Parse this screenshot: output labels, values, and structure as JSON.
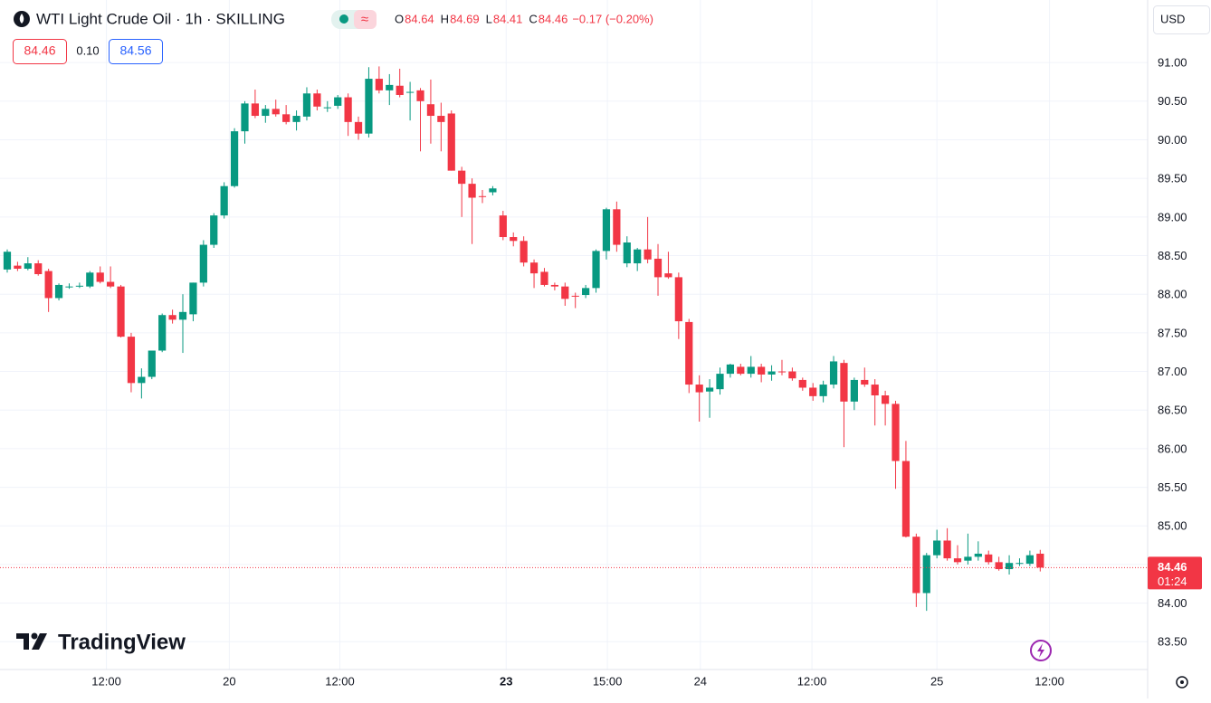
{
  "chart_data": {
    "type": "candlestick",
    "title": "WTI Light Crude Oil · 1h · SKILLING",
    "header_ohlc": [
      {
        "label": "O",
        "value": 84.64
      },
      {
        "label": "H",
        "value": 84.69
      },
      {
        "label": "L",
        "value": 84.41
      },
      {
        "label": "C",
        "value": 84.46
      }
    ],
    "change": "−0.17 (−0.20%)",
    "sell_price": "84.46",
    "spread": "0.10",
    "buy_price": "84.56",
    "currency": "USD",
    "brand": "TradingView",
    "last_price": 84.46,
    "countdown": "01:24",
    "up_color": "#089981",
    "down_color": "#f23645",
    "grid": true,
    "candles": [
      [
        88.32,
        88.58,
        88.28,
        88.55
      ],
      [
        88.37,
        88.42,
        88.3,
        88.33
      ],
      [
        88.33,
        88.48,
        88.31,
        88.4
      ],
      [
        88.4,
        88.44,
        88.24,
        88.26
      ],
      [
        88.3,
        88.33,
        87.77,
        87.95
      ],
      [
        87.95,
        88.14,
        87.92,
        88.12
      ],
      [
        88.1,
        88.14,
        88.07,
        88.1
      ],
      [
        88.1,
        88.15,
        88.08,
        88.11
      ],
      [
        88.1,
        88.3,
        88.08,
        88.28
      ],
      [
        88.28,
        88.36,
        88.14,
        88.16
      ],
      [
        88.16,
        88.36,
        88.08,
        88.1
      ],
      [
        88.1,
        88.12,
        87.44,
        87.45
      ],
      [
        87.45,
        87.5,
        86.73,
        86.85
      ],
      [
        86.85,
        87.04,
        86.65,
        86.93
      ],
      [
        86.93,
        87.27,
        86.9,
        87.27
      ],
      [
        87.27,
        87.75,
        87.25,
        87.73
      ],
      [
        87.73,
        87.8,
        87.62,
        87.67
      ],
      [
        87.67,
        88.0,
        87.24,
        87.77
      ],
      [
        87.74,
        88.15,
        87.65,
        88.15
      ],
      [
        88.15,
        88.7,
        88.1,
        88.64
      ],
      [
        88.64,
        89.05,
        88.6,
        89.02
      ],
      [
        89.02,
        89.45,
        88.98,
        89.4
      ],
      [
        89.4,
        90.15,
        89.38,
        90.11
      ],
      [
        90.11,
        90.5,
        89.95,
        90.47
      ],
      [
        90.47,
        90.65,
        90.28,
        90.31
      ],
      [
        90.31,
        90.45,
        90.22,
        90.4
      ],
      [
        90.4,
        90.52,
        90.3,
        90.33
      ],
      [
        90.33,
        90.45,
        90.2,
        90.23
      ],
      [
        90.23,
        90.38,
        90.12,
        90.31
      ],
      [
        90.3,
        90.68,
        90.25,
        90.6
      ],
      [
        90.6,
        90.65,
        90.38,
        90.43
      ],
      [
        90.42,
        90.5,
        90.36,
        90.42
      ],
      [
        90.44,
        90.58,
        90.4,
        90.55
      ],
      [
        90.55,
        90.6,
        90.05,
        90.23
      ],
      [
        90.23,
        90.3,
        90.0,
        90.08
      ],
      [
        90.08,
        90.94,
        90.03,
        90.79
      ],
      [
        90.79,
        90.95,
        90.6,
        90.64
      ],
      [
        90.64,
        90.85,
        90.45,
        90.71
      ],
      [
        90.7,
        90.92,
        90.55,
        90.58
      ],
      [
        90.62,
        90.75,
        90.25,
        90.62
      ],
      [
        90.64,
        90.67,
        89.85,
        90.5
      ],
      [
        90.46,
        90.78,
        89.95,
        90.31
      ],
      [
        90.31,
        90.48,
        89.85,
        90.23
      ],
      [
        90.34,
        90.38,
        89.6,
        89.6
      ],
      [
        89.6,
        89.65,
        89.0,
        89.43
      ],
      [
        89.43,
        89.5,
        88.65,
        89.25
      ],
      [
        89.27,
        89.35,
        89.18,
        89.26
      ],
      [
        89.32,
        89.4,
        89.28,
        89.37
      ],
      [
        89.02,
        89.08,
        88.7,
        88.74
      ],
      [
        88.74,
        88.8,
        88.62,
        88.69
      ],
      [
        88.69,
        88.75,
        88.36,
        88.41
      ],
      [
        88.41,
        88.45,
        88.08,
        88.27
      ],
      [
        88.29,
        88.34,
        88.1,
        88.12
      ],
      [
        88.12,
        88.15,
        88.05,
        88.1
      ],
      [
        88.1,
        88.15,
        87.85,
        87.94
      ],
      [
        87.98,
        88.02,
        87.82,
        87.97
      ],
      [
        87.99,
        88.12,
        87.95,
        88.08
      ],
      [
        88.08,
        88.58,
        88.02,
        88.56
      ],
      [
        88.56,
        89.12,
        88.45,
        89.1
      ],
      [
        89.1,
        89.2,
        88.55,
        88.64
      ],
      [
        88.4,
        88.75,
        88.35,
        88.67
      ],
      [
        88.4,
        88.6,
        88.3,
        88.58
      ],
      [
        88.58,
        89.0,
        88.4,
        88.45
      ],
      [
        88.46,
        88.65,
        87.98,
        88.22
      ],
      [
        88.27,
        88.55,
        88.2,
        88.22
      ],
      [
        88.22,
        88.28,
        87.42,
        87.65
      ],
      [
        87.64,
        87.68,
        86.72,
        86.83
      ],
      [
        86.83,
        86.95,
        86.35,
        86.73
      ],
      [
        86.74,
        86.9,
        86.4,
        86.79
      ],
      [
        86.77,
        87.05,
        86.7,
        86.97
      ],
      [
        86.97,
        87.1,
        86.92,
        87.09
      ],
      [
        87.06,
        87.1,
        86.95,
        86.97
      ],
      [
        86.97,
        87.2,
        86.92,
        87.06
      ],
      [
        87.06,
        87.1,
        86.86,
        86.96
      ],
      [
        86.96,
        87.08,
        86.88,
        87.0
      ],
      [
        87.0,
        87.15,
        86.95,
        86.99
      ],
      [
        87.0,
        87.05,
        86.88,
        86.91
      ],
      [
        86.89,
        86.92,
        86.75,
        86.79
      ],
      [
        86.79,
        86.85,
        86.62,
        86.68
      ],
      [
        86.68,
        86.88,
        86.6,
        86.83
      ],
      [
        86.83,
        87.2,
        86.78,
        87.13
      ],
      [
        87.11,
        87.15,
        86.02,
        86.61
      ],
      [
        86.61,
        86.92,
        86.5,
        86.89
      ],
      [
        86.89,
        87.05,
        86.8,
        86.83
      ],
      [
        86.83,
        86.9,
        86.3,
        86.69
      ],
      [
        86.69,
        86.75,
        86.3,
        86.58
      ],
      [
        86.58,
        86.62,
        85.48,
        85.84
      ],
      [
        85.84,
        86.1,
        84.85,
        84.86
      ],
      [
        84.86,
        84.9,
        83.95,
        84.13
      ],
      [
        84.13,
        84.65,
        83.9,
        84.62
      ],
      [
        84.62,
        84.95,
        84.58,
        84.81
      ],
      [
        84.81,
        84.97,
        84.55,
        84.58
      ],
      [
        84.58,
        84.75,
        84.5,
        84.53
      ],
      [
        84.55,
        84.9,
        84.5,
        84.6
      ],
      [
        84.6,
        84.8,
        84.55,
        84.64
      ],
      [
        84.63,
        84.68,
        84.5,
        84.53
      ],
      [
        84.53,
        84.6,
        84.42,
        84.44
      ],
      [
        84.44,
        84.62,
        84.37,
        84.52
      ],
      [
        84.52,
        84.58,
        84.48,
        84.52
      ],
      [
        84.51,
        84.68,
        84.48,
        84.62
      ],
      [
        84.64,
        84.69,
        84.41,
        84.46
      ]
    ],
    "xlim": [
      -0.7,
      110.4
    ],
    "xticks": [
      {
        "value": 9.6,
        "label": "12:00"
      },
      {
        "value": 21.5,
        "label": "20"
      },
      {
        "value": 32.2,
        "label": "12:00"
      },
      {
        "value": 48.3,
        "label": "23",
        "bold": true
      },
      {
        "value": 58.1,
        "label": "15:00"
      },
      {
        "value": 67.1,
        "label": "24"
      },
      {
        "value": 77.9,
        "label": "12:00"
      },
      {
        "value": 90,
        "label": "25"
      },
      {
        "value": 100.9,
        "label": "12:00"
      }
    ],
    "ylim": [
      83.14,
      91.81
    ],
    "yticks": [
      {
        "value": 83.5,
        "label": "83.50"
      },
      {
        "value": 84,
        "label": "84.00"
      },
      {
        "value": 84.5,
        "label": "84.50"
      },
      {
        "value": 85,
        "label": "85.00"
      },
      {
        "value": 85.5,
        "label": "85.50"
      },
      {
        "value": 86,
        "label": "86.00"
      },
      {
        "value": 86.5,
        "label": "86.50"
      },
      {
        "value": 87,
        "label": "87.00"
      },
      {
        "value": 87.5,
        "label": "87.50"
      },
      {
        "value": 88,
        "label": "88.00"
      },
      {
        "value": 88.5,
        "label": "88.50"
      },
      {
        "value": 89,
        "label": "89.00"
      },
      {
        "value": 89.5,
        "label": "89.50"
      },
      {
        "value": 90,
        "label": "90.00"
      },
      {
        "value": 90.5,
        "label": "90.50"
      },
      {
        "value": 91,
        "label": "91.00"
      }
    ]
  }
}
